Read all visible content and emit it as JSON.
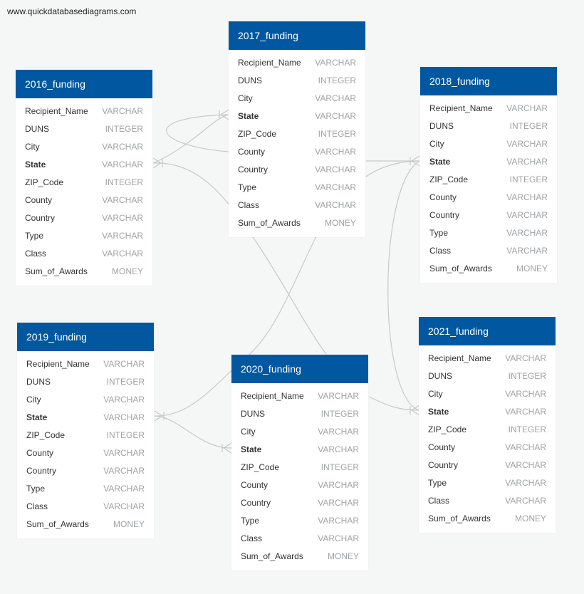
{
  "watermark": "www.quickdatabasediagrams.com",
  "types": {
    "v": "VARCHAR",
    "i": "INTEGER",
    "m": "MONEY"
  },
  "columns": [
    {
      "name": "Recipient_Name",
      "type": "VARCHAR",
      "bold": false
    },
    {
      "name": "DUNS",
      "type": "INTEGER",
      "bold": false
    },
    {
      "name": "City",
      "type": "VARCHAR",
      "bold": false
    },
    {
      "name": "State",
      "type": "VARCHAR",
      "bold": true
    },
    {
      "name": "ZIP_Code",
      "type": "INTEGER",
      "bold": false
    },
    {
      "name": "County",
      "type": "VARCHAR",
      "bold": false
    },
    {
      "name": "Country",
      "type": "VARCHAR",
      "bold": false
    },
    {
      "name": "Type",
      "type": "VARCHAR",
      "bold": false
    },
    {
      "name": "Class",
      "type": "VARCHAR",
      "bold": false
    },
    {
      "name": "Sum_of_Awards",
      "type": "MONEY",
      "bold": false
    }
  ],
  "tables": [
    {
      "id": "2016",
      "title": "2016_funding"
    },
    {
      "id": "2017",
      "title": "2017_funding"
    },
    {
      "id": "2018",
      "title": "2018_funding"
    },
    {
      "id": "2019",
      "title": "2019_funding"
    },
    {
      "id": "2020",
      "title": "2020_funding"
    },
    {
      "id": "2021",
      "title": "2021_funding"
    }
  ]
}
